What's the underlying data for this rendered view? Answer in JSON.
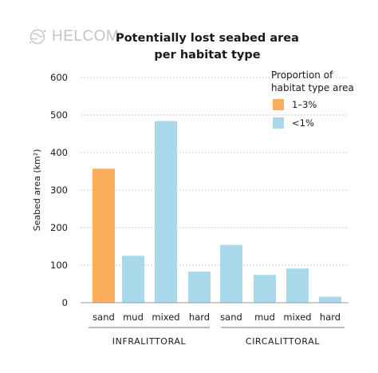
{
  "logo": {
    "text": "HELCOM",
    "icon": "helcom-globe-icon"
  },
  "chart_data": {
    "type": "bar",
    "title": [
      "Potentially lost seabed area",
      "per habitat type"
    ],
    "ylabel": "Seabed area (km²)",
    "ylim": [
      0,
      600
    ],
    "yticks": [
      "0",
      "100",
      "200",
      "300",
      "400",
      "500",
      "600"
    ],
    "grid": "horizontal dotted",
    "categories": [
      "sand",
      "mud",
      "mixed",
      "hard",
      "sand",
      "mud",
      "mixed",
      "hard"
    ],
    "groups": [
      {
        "label": "INFRALITTORAL",
        "categories": [
          0,
          1,
          2,
          3
        ]
      },
      {
        "label": "CIRCALITTORAL",
        "categories": [
          4,
          5,
          6,
          7
        ]
      }
    ],
    "values": [
      357,
      125,
      484,
      83,
      154,
      74,
      91,
      16
    ],
    "proportion_class": [
      0,
      1,
      1,
      1,
      1,
      1,
      1,
      1
    ],
    "legend": {
      "title": [
        "Proportion of",
        "habitat type area"
      ],
      "placement": "top-right",
      "entries": [
        {
          "label": "1–3%",
          "color": "#f9ae5c"
        },
        {
          "label": "<1%",
          "color": "#a9d8eb"
        }
      ]
    }
  }
}
